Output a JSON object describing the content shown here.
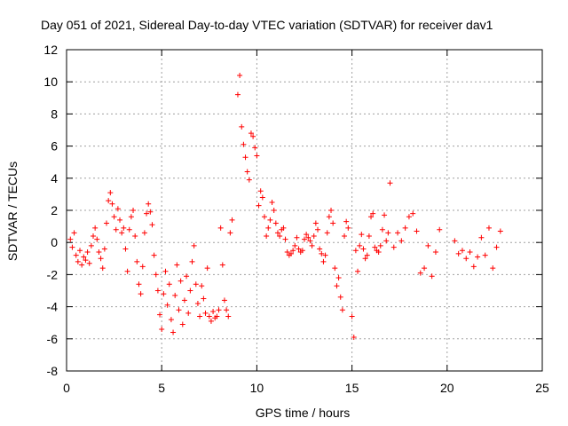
{
  "chart_data": {
    "type": "scatter",
    "title": "Day 051 of 2021, Sidereal Day-to-day VTEC variation (SDTVAR) for receiver dav1",
    "xlabel": "GPS time / hours",
    "ylabel": "SDTVAR / TECUs",
    "xlim": [
      0,
      25
    ],
    "ylim": [
      -8,
      12
    ],
    "x_ticks": [
      "0",
      "5",
      "10",
      "15",
      "20",
      "25"
    ],
    "y_ticks": [
      "-8",
      "-6",
      "-4",
      "-2",
      "0",
      "2",
      "4",
      "6",
      "8",
      "10",
      "12"
    ],
    "grid": true,
    "marker": "+",
    "series_color": "#ff0000",
    "series": [
      {
        "name": "SDTVAR",
        "x": [
          0.2,
          0.3,
          0.4,
          0.5,
          0.6,
          0.7,
          0.8,
          0.9,
          1.0,
          1.1,
          1.2,
          1.3,
          1.4,
          1.5,
          1.6,
          1.7,
          1.8,
          1.9,
          2.0,
          2.1,
          2.2,
          2.3,
          2.4,
          2.5,
          2.6,
          2.7,
          2.8,
          2.9,
          3.0,
          3.1,
          3.2,
          3.3,
          3.4,
          3.5,
          3.6,
          3.7,
          3.8,
          3.9,
          4.0,
          4.1,
          4.2,
          4.3,
          4.4,
          4.5,
          4.6,
          4.7,
          4.8,
          4.9,
          5.0,
          5.1,
          5.2,
          5.3,
          5.4,
          5.5,
          5.6,
          5.7,
          5.8,
          5.9,
          6.0,
          6.1,
          6.2,
          6.3,
          6.4,
          6.5,
          6.6,
          6.7,
          6.8,
          6.9,
          7.0,
          7.1,
          7.2,
          7.3,
          7.4,
          7.5,
          7.6,
          7.7,
          7.8,
          7.9,
          8.0,
          8.1,
          8.2,
          8.3,
          8.4,
          8.5,
          8.6,
          8.7,
          9.0,
          9.1,
          9.2,
          9.3,
          9.4,
          9.5,
          9.6,
          9.7,
          9.8,
          9.9,
          10.0,
          10.1,
          10.2,
          10.3,
          10.4,
          10.5,
          10.6,
          10.7,
          10.8,
          10.9,
          11.0,
          11.1,
          11.2,
          11.3,
          11.4,
          11.5,
          11.6,
          11.7,
          11.8,
          11.9,
          12.0,
          12.1,
          12.2,
          12.3,
          12.4,
          12.5,
          12.6,
          12.7,
          12.8,
          12.9,
          13.0,
          13.1,
          13.2,
          13.3,
          13.4,
          13.5,
          13.6,
          13.7,
          13.8,
          13.9,
          14.0,
          14.1,
          14.2,
          14.3,
          14.4,
          14.5,
          14.6,
          14.7,
          14.8,
          15.0,
          15.1,
          15.2,
          15.3,
          15.4,
          15.5,
          15.6,
          15.7,
          15.8,
          15.9,
          16.0,
          16.1,
          16.2,
          16.3,
          16.4,
          16.5,
          16.6,
          16.7,
          16.8,
          16.9,
          17.0,
          17.2,
          17.4,
          17.6,
          17.8,
          18.0,
          18.2,
          18.4,
          18.6,
          18.8,
          19.0,
          19.2,
          19.4,
          19.6,
          20.4,
          20.6,
          20.8,
          21.0,
          21.2,
          21.4,
          21.6,
          21.8,
          22.0,
          22.2,
          22.4,
          22.6,
          22.8
        ],
        "y": [
          0.2,
          -0.3,
          0.6,
          -0.8,
          -1.2,
          -0.5,
          -1.4,
          -0.9,
          -1.1,
          -0.6,
          -1.3,
          -0.2,
          0.4,
          0.9,
          0.2,
          -0.6,
          -1.0,
          -1.6,
          -0.4,
          1.2,
          2.6,
          3.1,
          2.4,
          1.6,
          0.8,
          2.1,
          1.4,
          0.6,
          0.9,
          -0.4,
          -1.8,
          0.8,
          1.6,
          2.0,
          0.4,
          -1.2,
          -2.6,
          -3.2,
          -1.5,
          0.6,
          1.8,
          2.4,
          1.9,
          1.1,
          -0.8,
          -2.0,
          -3.0,
          -4.5,
          -5.4,
          -3.2,
          -1.8,
          -3.9,
          -2.6,
          -4.8,
          -5.6,
          -3.3,
          -1.4,
          -4.2,
          -2.4,
          -5.1,
          -3.6,
          -2.1,
          -4.4,
          -3.0,
          -1.2,
          -0.2,
          -2.6,
          -3.8,
          -4.6,
          -2.7,
          -3.5,
          -4.4,
          -1.6,
          -4.6,
          -4.9,
          -4.3,
          -4.7,
          -4.6,
          -4.2,
          0.9,
          -1.4,
          -3.6,
          -4.2,
          -4.6,
          0.6,
          1.4,
          9.2,
          10.4,
          7.2,
          6.1,
          5.3,
          4.4,
          3.9,
          6.8,
          6.6,
          5.9,
          5.4,
          2.3,
          3.2,
          2.8,
          1.6,
          0.4,
          0.9,
          1.4,
          2.5,
          2.0,
          1.2,
          0.6,
          0.4,
          0.8,
          0.9,
          0.2,
          -0.6,
          -0.8,
          -0.7,
          -0.5,
          -0.2,
          0.3,
          -0.4,
          -0.6,
          -0.5,
          0.2,
          0.5,
          0.3,
          0.1,
          -0.2,
          0.4,
          1.2,
          0.8,
          -0.4,
          -0.7,
          -1.2,
          -0.8,
          0.6,
          1.6,
          2.0,
          1.2,
          -1.6,
          -2.7,
          -2.2,
          -3.4,
          -4.2,
          0.4,
          1.3,
          0.9,
          -4.6,
          -5.9,
          -0.5,
          -1.8,
          -0.2,
          0.5,
          -0.4,
          -1.0,
          -0.8,
          0.4,
          1.6,
          1.8,
          -0.3,
          -0.5,
          -0.6,
          -0.2,
          0.8,
          1.7,
          0.1,
          0.6,
          3.7,
          -0.3,
          0.6,
          0.1,
          0.9,
          1.6,
          1.8,
          0.7,
          -1.9,
          -1.6,
          -0.2,
          -2.1,
          -0.6,
          0.8,
          0.1,
          -0.7,
          -0.5,
          -1.0,
          -0.6,
          -1.5,
          -0.9,
          0.3,
          -0.8,
          0.9,
          -1.6,
          -0.3,
          0.7
        ]
      }
    ]
  }
}
